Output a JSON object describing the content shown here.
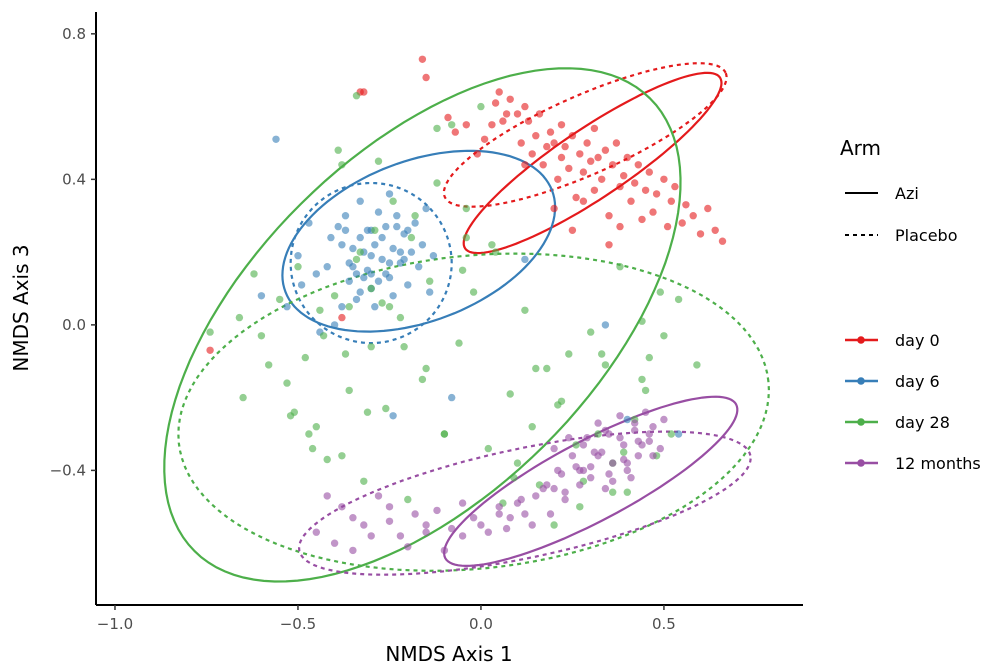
{
  "chart_data": {
    "type": "scatter",
    "title": "",
    "xlabel": "NMDS Axis 1",
    "ylabel": "NMDS Axis 3",
    "xlim": [
      -1.03,
      0.88
    ],
    "ylim": [
      -0.77,
      0.86
    ],
    "x_ticks": [
      -1.0,
      -0.5,
      0.0,
      0.5
    ],
    "x_tick_labels": [
      "−1.0",
      "−0.5",
      "0.0",
      "0.5"
    ],
    "y_ticks": [
      -0.4,
      0.0,
      0.4,
      0.8
    ],
    "y_tick_labels": [
      "−0.4",
      "0.0",
      "0.4",
      "0.8"
    ],
    "grid": false,
    "legend_placement": "right",
    "legends": [
      {
        "title": "Arm",
        "variable": "linetype",
        "entries": [
          {
            "label": "Azi",
            "linetype": "solid"
          },
          {
            "label": "Placebo",
            "linetype": "dashed"
          }
        ]
      },
      {
        "title": "",
        "variable": "colour",
        "entries": [
          {
            "label": "day 0",
            "color": "#e41a1c"
          },
          {
            "label": "day 6",
            "color": "#377eb8"
          },
          {
            "label": "day 28",
            "color": "#4daf4a"
          },
          {
            "label": "12 months",
            "color": "#984ea3"
          }
        ]
      }
    ],
    "series": [
      {
        "name": "day 0",
        "color": "#e41a1c",
        "x": [
          -0.33,
          -0.32,
          -0.16,
          -0.15,
          -0.09,
          -0.07,
          -0.04,
          -0.01,
          0.01,
          0.03,
          0.04,
          0.05,
          0.06,
          0.07,
          0.08,
          0.1,
          0.11,
          0.12,
          0.12,
          0.13,
          0.14,
          0.15,
          0.16,
          0.17,
          0.18,
          0.19,
          0.2,
          0.21,
          0.22,
          0.22,
          0.23,
          0.24,
          0.25,
          0.26,
          0.27,
          0.28,
          0.29,
          0.3,
          0.31,
          0.31,
          0.32,
          0.33,
          0.34,
          0.35,
          0.36,
          0.37,
          0.38,
          0.39,
          0.4,
          0.41,
          0.42,
          0.43,
          0.44,
          0.45,
          0.46,
          0.47,
          0.48,
          0.5,
          0.51,
          0.52,
          0.53,
          0.55,
          0.56,
          0.58,
          0.6,
          0.62,
          0.64,
          0.66,
          0.2,
          0.25,
          0.28,
          0.35,
          0.38,
          -0.38,
          -0.74
        ],
        "y": [
          0.64,
          0.64,
          0.73,
          0.68,
          0.57,
          0.53,
          0.55,
          0.47,
          0.51,
          0.55,
          0.61,
          0.64,
          0.56,
          0.58,
          0.62,
          0.58,
          0.5,
          0.6,
          0.44,
          0.56,
          0.47,
          0.52,
          0.58,
          0.44,
          0.49,
          0.53,
          0.5,
          0.4,
          0.55,
          0.46,
          0.49,
          0.43,
          0.52,
          0.35,
          0.47,
          0.42,
          0.5,
          0.45,
          0.37,
          0.54,
          0.46,
          0.4,
          0.48,
          0.3,
          0.44,
          0.5,
          0.38,
          0.41,
          0.46,
          0.34,
          0.39,
          0.44,
          0.29,
          0.37,
          0.42,
          0.31,
          0.36,
          0.4,
          0.27,
          0.34,
          0.38,
          0.28,
          0.33,
          0.3,
          0.25,
          0.32,
          0.26,
          0.23,
          0.32,
          0.26,
          0.34,
          0.22,
          0.27,
          0.02,
          -0.07
        ]
      },
      {
        "name": "day 6",
        "color": "#377eb8",
        "x": [
          -0.56,
          -0.5,
          -0.47,
          -0.45,
          -0.42,
          -0.4,
          -0.38,
          -0.37,
          -0.36,
          -0.35,
          -0.34,
          -0.33,
          -0.32,
          -0.31,
          -0.3,
          -0.3,
          -0.29,
          -0.28,
          -0.27,
          -0.26,
          -0.25,
          -0.24,
          -0.23,
          -0.22,
          -0.21,
          -0.2,
          -0.19,
          -0.18,
          -0.17,
          -0.16,
          -0.15,
          -0.14,
          -0.13,
          -0.36,
          -0.33,
          -0.31,
          -0.3,
          -0.28,
          -0.27,
          -0.25,
          -0.22,
          -0.2,
          -0.38,
          -0.35,
          -0.34,
          -0.32,
          -0.29,
          -0.26,
          -0.24,
          -0.21,
          -0.37,
          -0.33,
          -0.3,
          -0.25,
          -0.23,
          -0.44,
          -0.49,
          -0.53,
          -0.6,
          -0.41,
          -0.39,
          0.12,
          0.34,
          0.4,
          0.54,
          -0.24,
          -0.08
        ],
        "y": [
          0.51,
          0.19,
          0.28,
          0.14,
          0.16,
          0.0,
          0.22,
          0.3,
          0.17,
          0.21,
          0.14,
          0.24,
          0.2,
          0.26,
          0.14,
          0.1,
          0.22,
          0.31,
          0.18,
          0.27,
          0.13,
          0.21,
          0.3,
          0.17,
          0.25,
          0.11,
          0.2,
          0.28,
          0.16,
          0.22,
          0.32,
          0.09,
          0.19,
          0.12,
          0.09,
          0.15,
          0.19,
          0.12,
          0.24,
          0.17,
          0.2,
          0.26,
          0.05,
          0.16,
          0.07,
          0.13,
          0.05,
          0.14,
          0.08,
          0.18,
          0.26,
          0.34,
          0.26,
          0.36,
          0.27,
          -0.02,
          0.11,
          0.05,
          0.08,
          0.24,
          0.27,
          0.18,
          0.0,
          -0.26,
          -0.3,
          -0.25,
          -0.2
        ]
      },
      {
        "name": "day 28",
        "color": "#4daf4a",
        "x": [
          -0.74,
          -0.66,
          -0.62,
          -0.58,
          -0.55,
          -0.52,
          -0.5,
          -0.48,
          -0.45,
          -0.43,
          -0.4,
          -0.38,
          -0.36,
          -0.34,
          -0.32,
          -0.3,
          -0.28,
          -0.26,
          -0.24,
          -0.22,
          -0.2,
          -0.18,
          -0.16,
          -0.14,
          -0.12,
          -0.1,
          -0.08,
          -0.06,
          -0.04,
          -0.02,
          0.0,
          0.02,
          0.04,
          0.06,
          0.08,
          0.1,
          0.12,
          0.14,
          0.16,
          0.18,
          0.2,
          0.22,
          0.24,
          0.26,
          0.28,
          0.3,
          0.32,
          0.34,
          0.36,
          0.38,
          0.4,
          0.42,
          0.44,
          0.46,
          0.48,
          0.5,
          0.52,
          0.54,
          -0.65,
          -0.6,
          -0.53,
          -0.47,
          -0.42,
          -0.37,
          -0.31,
          -0.27,
          -0.21,
          -0.15,
          -0.1,
          -0.05,
          0.03,
          0.09,
          0.15,
          0.21,
          0.27,
          0.33,
          0.39,
          0.45,
          -0.34,
          -0.29,
          -0.33,
          -0.36,
          -0.38,
          -0.19,
          -0.12,
          -0.04,
          -0.25,
          -0.3,
          -0.46,
          -0.51,
          -0.44,
          -0.39,
          0.36,
          0.44,
          0.49,
          0.59
        ],
        "y": [
          -0.02,
          0.02,
          0.14,
          -0.11,
          0.07,
          -0.25,
          0.16,
          -0.09,
          -0.28,
          -0.03,
          0.08,
          -0.36,
          -0.18,
          0.63,
          -0.43,
          0.1,
          0.45,
          -0.23,
          0.34,
          0.02,
          -0.48,
          0.3,
          -0.15,
          0.12,
          0.39,
          -0.3,
          0.55,
          -0.05,
          0.24,
          0.09,
          0.6,
          -0.34,
          0.2,
          -0.49,
          -0.19,
          -0.38,
          0.04,
          -0.28,
          -0.44,
          -0.12,
          -0.55,
          -0.21,
          -0.08,
          -0.33,
          -0.43,
          -0.02,
          -0.3,
          -0.11,
          -0.38,
          0.16,
          -0.46,
          -0.26,
          0.01,
          -0.09,
          -0.36,
          -0.03,
          -0.3,
          0.07,
          -0.2,
          -0.03,
          -0.16,
          -0.3,
          -0.37,
          -0.08,
          -0.24,
          0.06,
          -0.06,
          -0.12,
          -0.3,
          0.15,
          0.22,
          -0.42,
          -0.12,
          -0.22,
          -0.5,
          -0.08,
          -0.35,
          -0.18,
          0.18,
          0.26,
          0.2,
          0.05,
          0.44,
          0.24,
          0.54,
          0.32,
          0.05,
          -0.06,
          -0.34,
          -0.24,
          0.04,
          0.48,
          -0.46,
          -0.15,
          0.09,
          -0.11
        ]
      },
      {
        "name": "12 months",
        "color": "#984ea3",
        "x": [
          -0.42,
          -0.38,
          -0.35,
          -0.32,
          -0.28,
          -0.25,
          -0.22,
          -0.18,
          -0.15,
          -0.12,
          -0.08,
          -0.05,
          -0.02,
          0.02,
          0.05,
          0.08,
          0.11,
          0.14,
          0.17,
          0.19,
          0.21,
          0.23,
          0.25,
          0.27,
          0.29,
          0.3,
          0.32,
          0.33,
          0.35,
          0.36,
          0.38,
          0.39,
          0.4,
          0.42,
          0.43,
          0.45,
          0.46,
          0.47,
          0.49,
          0.5,
          0.2,
          0.22,
          0.24,
          0.26,
          0.28,
          0.3,
          0.32,
          0.34,
          0.36,
          0.38,
          0.4,
          0.42,
          0.44,
          0.46,
          0.18,
          0.23,
          0.27,
          0.31,
          0.35,
          0.39,
          0.43,
          0.47,
          0.15,
          0.1,
          0.05,
          0.0,
          -0.05,
          -0.1,
          -0.15,
          -0.2,
          -0.25,
          -0.3,
          -0.35,
          -0.4,
          -0.45,
          0.12,
          0.07,
          0.2,
          0.28,
          0.34,
          0.41
        ],
        "y": [
          -0.47,
          -0.5,
          -0.53,
          -0.55,
          -0.47,
          -0.5,
          -0.58,
          -0.52,
          -0.55,
          -0.51,
          -0.56,
          -0.49,
          -0.53,
          -0.57,
          -0.5,
          -0.53,
          -0.48,
          -0.55,
          -0.45,
          -0.52,
          -0.4,
          -0.48,
          -0.36,
          -0.44,
          -0.31,
          -0.39,
          -0.27,
          -0.35,
          -0.3,
          -0.38,
          -0.25,
          -0.33,
          -0.4,
          -0.29,
          -0.36,
          -0.24,
          -0.32,
          -0.28,
          -0.34,
          -0.26,
          -0.34,
          -0.41,
          -0.31,
          -0.39,
          -0.33,
          -0.42,
          -0.36,
          -0.29,
          -0.43,
          -0.31,
          -0.38,
          -0.27,
          -0.33,
          -0.3,
          -0.44,
          -0.46,
          -0.4,
          -0.35,
          -0.41,
          -0.37,
          -0.32,
          -0.36,
          -0.47,
          -0.49,
          -0.52,
          -0.55,
          -0.58,
          -0.62,
          -0.57,
          -0.61,
          -0.54,
          -0.58,
          -0.62,
          -0.6,
          -0.57,
          -0.52,
          -0.56,
          -0.45,
          -0.4,
          -0.45,
          -0.42
        ]
      }
    ],
    "ellipses": [
      {
        "series": "day 0",
        "arm": "Azi",
        "cx": 0.305,
        "cy": 0.445,
        "rx": 0.42,
        "ry": 0.095,
        "angle_deg": 34
      },
      {
        "series": "day 0",
        "arm": "Placebo",
        "cx": 0.285,
        "cy": 0.522,
        "rx": 0.42,
        "ry": 0.108,
        "angle_deg": 24
      },
      {
        "series": "day 6",
        "arm": "Azi",
        "cx": -0.17,
        "cy": 0.23,
        "rx": 0.39,
        "ry": 0.22,
        "angle_deg": 21
      },
      {
        "series": "day 6",
        "arm": "Placebo",
        "cx": -0.3,
        "cy": 0.17,
        "rx": 0.22,
        "ry": 0.22,
        "angle_deg": 0
      },
      {
        "series": "day 28",
        "arm": "Azi",
        "cx": -0.16,
        "cy": 0.0,
        "rx": 0.88,
        "ry": 0.47,
        "angle_deg": 45
      },
      {
        "series": "day 28",
        "arm": "Placebo",
        "cx": -0.02,
        "cy": -0.24,
        "rx": 0.81,
        "ry": 0.43,
        "angle_deg": 6
      },
      {
        "series": "12 months",
        "arm": "Azi",
        "cx": 0.3,
        "cy": -0.43,
        "rx": 0.45,
        "ry": 0.11,
        "angle_deg": 28
      },
      {
        "series": "12 months",
        "arm": "Placebo",
        "cx": 0.12,
        "cy": -0.49,
        "rx": 0.63,
        "ry": 0.15,
        "angle_deg": 12
      }
    ]
  }
}
